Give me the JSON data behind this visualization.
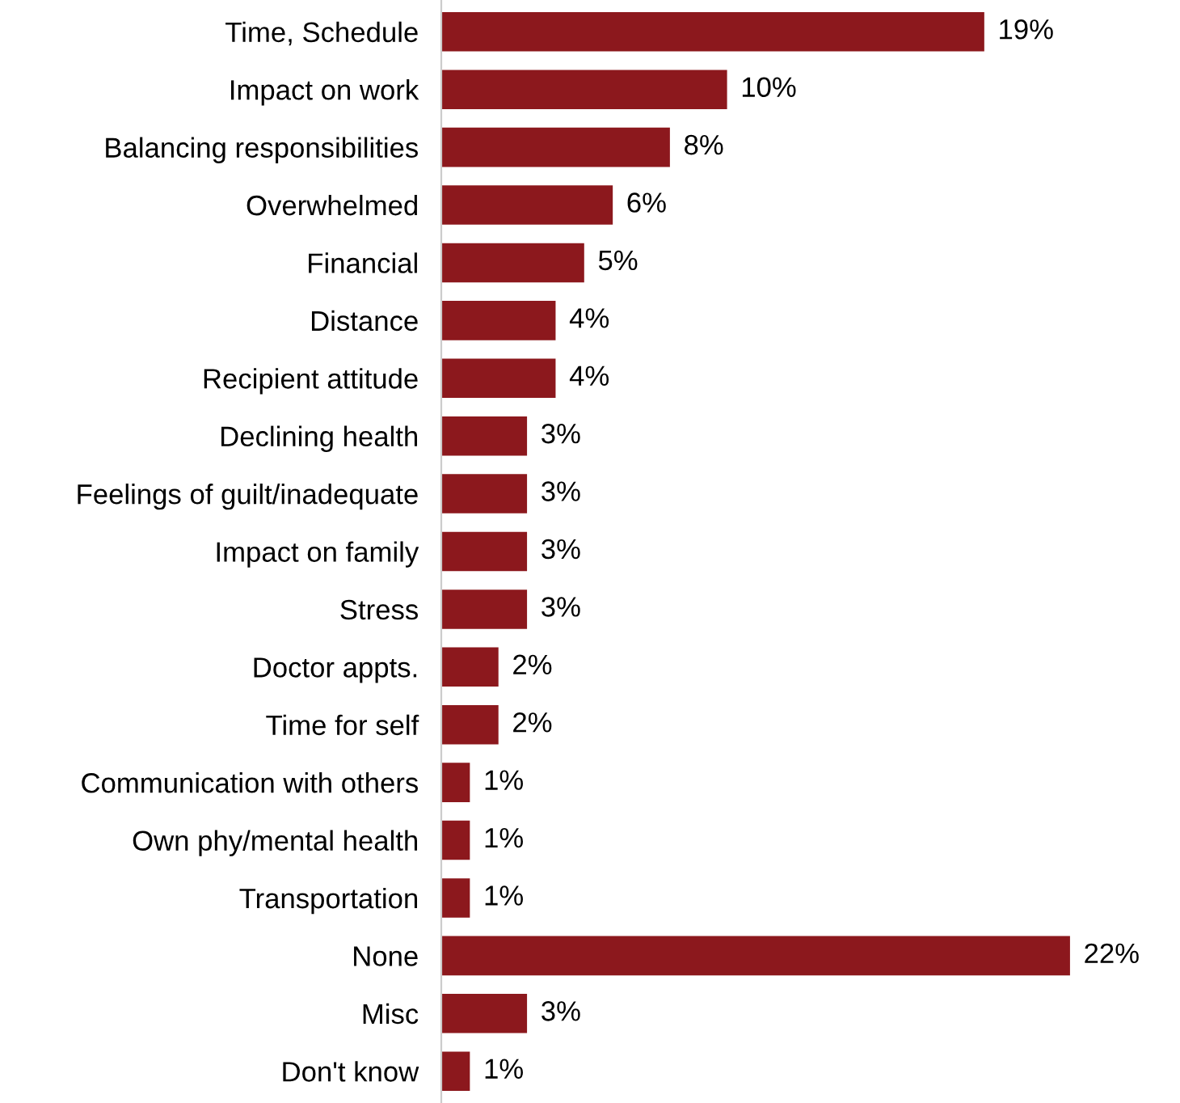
{
  "chart_data": {
    "type": "bar",
    "orientation": "horizontal",
    "categories": [
      "Time, Schedule",
      "Impact on work",
      "Balancing responsibilities",
      "Overwhelmed",
      "Financial",
      "Distance",
      "Recipient attitude",
      "Declining health",
      "Feelings of guilt/inadequate",
      "Impact on family",
      "Stress",
      "Doctor appts.",
      "Time for self",
      "Communication with others",
      "Own phy/mental health",
      "Transportation",
      "None",
      "Misc",
      "Don't know"
    ],
    "values": [
      19,
      10,
      8,
      6,
      5,
      4,
      4,
      3,
      3,
      3,
      3,
      2,
      2,
      1,
      1,
      1,
      22,
      3,
      1
    ],
    "value_labels": [
      "19%",
      "10%",
      "8%",
      "6%",
      "5%",
      "4%",
      "4%",
      "3%",
      "3%",
      "3%",
      "3%",
      "2%",
      "2%",
      "1%",
      "1%",
      "1%",
      "22%",
      "3%",
      "1%"
    ],
    "color": "#8c181d",
    "grid": false,
    "legend": false
  }
}
